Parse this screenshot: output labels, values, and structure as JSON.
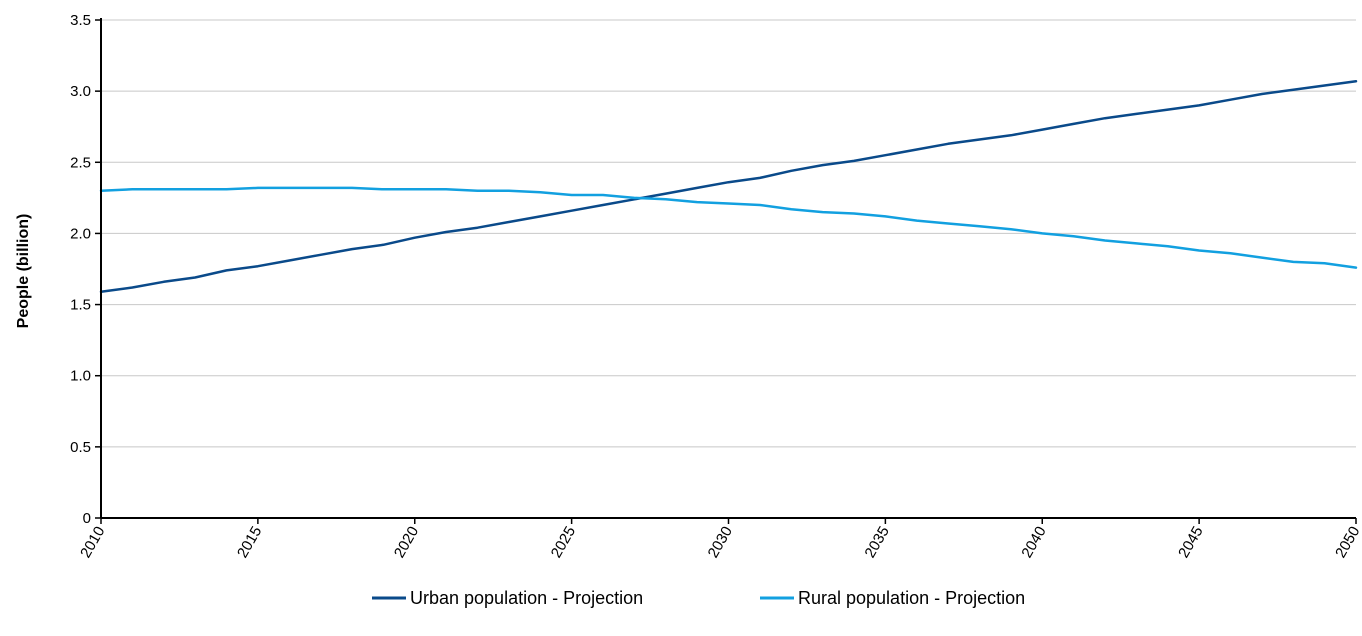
{
  "chart_data": {
    "type": "line",
    "title": "",
    "xlabel": "",
    "ylabel": "People (billion)",
    "xlim": [
      2010,
      2050
    ],
    "ylim": [
      0,
      3.5
    ],
    "x_ticks": [
      2010,
      2015,
      2020,
      2025,
      2030,
      2035,
      2040,
      2045,
      2050
    ],
    "y_ticks": [
      0,
      0.5,
      1.0,
      1.5,
      2.0,
      2.5,
      3.0,
      3.5
    ],
    "y_tick_labels": [
      "0",
      "0.5",
      "1.0",
      "1.5",
      "2.0",
      "2.5",
      "3.0",
      "3.5"
    ],
    "grid": "horizontal",
    "legend": "bottom",
    "x": [
      2010,
      2011,
      2012,
      2013,
      2014,
      2015,
      2016,
      2017,
      2018,
      2019,
      2020,
      2021,
      2022,
      2023,
      2024,
      2025,
      2026,
      2027,
      2028,
      2029,
      2030,
      2031,
      2032,
      2033,
      2034,
      2035,
      2036,
      2037,
      2038,
      2039,
      2040,
      2041,
      2042,
      2043,
      2044,
      2045,
      2046,
      2047,
      2048,
      2049,
      2050
    ],
    "series": [
      {
        "name": "Urban population - Projection",
        "color": "#0a4a8a",
        "values": [
          1.59,
          1.62,
          1.66,
          1.69,
          1.74,
          1.77,
          1.81,
          1.85,
          1.89,
          1.92,
          1.97,
          2.01,
          2.04,
          2.08,
          2.12,
          2.16,
          2.2,
          2.24,
          2.28,
          2.32,
          2.36,
          2.39,
          2.44,
          2.48,
          2.51,
          2.55,
          2.59,
          2.63,
          2.66,
          2.69,
          2.73,
          2.77,
          2.81,
          2.84,
          2.87,
          2.9,
          2.94,
          2.98,
          3.01,
          3.04,
          3.07
        ]
      },
      {
        "name": "Rural population - Projection",
        "color": "#12a0e0",
        "values": [
          2.3,
          2.31,
          2.31,
          2.31,
          2.31,
          2.32,
          2.32,
          2.32,
          2.32,
          2.31,
          2.31,
          2.31,
          2.3,
          2.3,
          2.29,
          2.27,
          2.27,
          2.25,
          2.24,
          2.22,
          2.21,
          2.2,
          2.17,
          2.15,
          2.14,
          2.12,
          2.09,
          2.07,
          2.05,
          2.03,
          2.0,
          1.98,
          1.95,
          1.93,
          1.91,
          1.88,
          1.86,
          1.83,
          1.8,
          1.79,
          1.76
        ]
      }
    ]
  }
}
